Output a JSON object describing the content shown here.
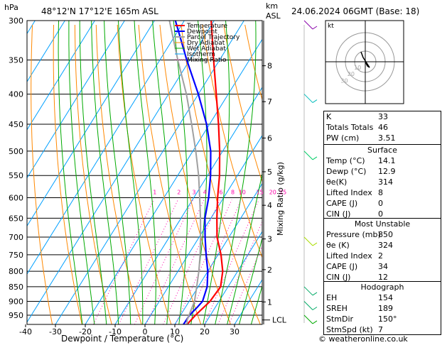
{
  "header": {
    "hpa_label": "hPa",
    "location": "48°12'N  17°12'E  165m  ASL",
    "km_label": "km",
    "asl_label": "ASL",
    "datetime": "24.06.2024  06GMT  (Base: 18)"
  },
  "legend": [
    {
      "label": "Temperature",
      "color": "#ff0000"
    },
    {
      "label": "Dewpoint",
      "color": "#0000ff"
    },
    {
      "label": "Parcel Trajectory",
      "color": "#a0a0a0"
    },
    {
      "label": "Dry Adiabat",
      "color": "#ff8800"
    },
    {
      "label": "Wet Adiabat",
      "color": "#00aa00"
    },
    {
      "label": "Isotherm",
      "color": "#00a0ff"
    },
    {
      "label": "Mixing Ratio",
      "color": "#ff00aa"
    }
  ],
  "chart_data": {
    "type": "line",
    "xlabel": "Dewpoint / Temperature (°C)",
    "ylabel": "Mixing Ratio (g/kg)",
    "x_ticks": [
      -40,
      -30,
      -20,
      -10,
      0,
      10,
      20,
      30
    ],
    "pressure_levels": [
      300,
      350,
      400,
      450,
      500,
      550,
      600,
      650,
      700,
      750,
      800,
      850,
      900,
      950
    ],
    "pressure_range": [
      300,
      985
    ],
    "km_ticks": [
      {
        "km": "1",
        "p": 902
      },
      {
        "km": "2",
        "p": 795
      },
      {
        "km": "3",
        "p": 705
      },
      {
        "km": "4",
        "p": 618
      },
      {
        "km": "5",
        "p": 542
      },
      {
        "km": "6",
        "p": 475
      },
      {
        "km": "7",
        "p": 412
      },
      {
        "km": "8",
        "p": 358
      }
    ],
    "lcl": {
      "label": "LCL",
      "p": 968
    },
    "mixing_ratio_labels": [
      "1",
      "2",
      "3",
      "4",
      "6",
      "8",
      "10",
      "15",
      "20",
      "25"
    ],
    "series": [
      {
        "name": "Temperature",
        "color": "#ff0000",
        "points": [
          [
            14.1,
            985
          ],
          [
            15,
            950
          ],
          [
            17,
            900
          ],
          [
            17.5,
            850
          ],
          [
            15,
            800
          ],
          [
            11,
            750
          ],
          [
            6,
            700
          ],
          [
            2,
            650
          ],
          [
            -2,
            600
          ],
          [
            -6,
            550
          ],
          [
            -11,
            500
          ],
          [
            -17,
            450
          ],
          [
            -24,
            400
          ],
          [
            -32,
            350
          ],
          [
            -41,
            300
          ]
        ]
      },
      {
        "name": "Dewpoint",
        "color": "#0000ff",
        "points": [
          [
            12.9,
            985
          ],
          [
            13,
            950
          ],
          [
            14,
            920
          ],
          [
            14.5,
            900
          ],
          [
            13,
            850
          ],
          [
            10,
            800
          ],
          [
            6,
            750
          ],
          [
            2,
            700
          ],
          [
            -2,
            650
          ],
          [
            -5,
            600
          ],
          [
            -9,
            550
          ],
          [
            -14,
            500
          ],
          [
            -21,
            450
          ],
          [
            -30,
            400
          ],
          [
            -41,
            350
          ],
          [
            -53,
            300
          ]
        ]
      },
      {
        "name": "Parcel Trajectory",
        "color": "#a0a0a0",
        "points": [
          [
            14.1,
            985
          ],
          [
            13.2,
            968
          ],
          [
            11.8,
            900
          ],
          [
            9.5,
            850
          ],
          [
            7,
            800
          ],
          [
            4,
            750
          ],
          [
            0.5,
            700
          ],
          [
            -3.5,
            650
          ],
          [
            -8,
            600
          ],
          [
            -13,
            550
          ],
          [
            -19,
            500
          ],
          [
            -26,
            450
          ],
          [
            -34,
            400
          ],
          [
            -44,
            350
          ],
          [
            -55,
            300
          ]
        ]
      }
    ]
  },
  "hodograph": {
    "label": "kt",
    "ring_labels": [
      "10",
      "20",
      "30"
    ]
  },
  "stats": {
    "top": [
      {
        "k": "K",
        "v": "33"
      },
      {
        "k": "Totals Totals",
        "v": "46"
      },
      {
        "k": "PW (cm)",
        "v": "3.51"
      }
    ],
    "surface": {
      "title": "Surface",
      "rows": [
        {
          "k": "Temp (°C)",
          "v": "14.1"
        },
        {
          "k": "Dewp (°C)",
          "v": "12.9"
        },
        {
          "k": "θe(K)",
          "v": "314"
        },
        {
          "k": "Lifted Index",
          "v": "8"
        },
        {
          "k": "CAPE (J)",
          "v": "0"
        },
        {
          "k": "CIN (J)",
          "v": "0"
        }
      ]
    },
    "unstable": {
      "title": "Most Unstable",
      "rows": [
        {
          "k": "Pressure (mb)",
          "v": "850"
        },
        {
          "k": "θe (K)",
          "v": "324"
        },
        {
          "k": "Lifted Index",
          "v": "2"
        },
        {
          "k": "CAPE (J)",
          "v": "34"
        },
        {
          "k": "CIN (J)",
          "v": "12"
        }
      ]
    },
    "hodo": {
      "title": "Hodograph",
      "rows": [
        {
          "k": "EH",
          "v": "154"
        },
        {
          "k": "SREH",
          "v": "189"
        },
        {
          "k": "StmDir",
          "v": "150°"
        },
        {
          "k": "StmSpd (kt)",
          "v": "7"
        }
      ]
    }
  },
  "copyright": "© weatheronline.co.uk"
}
